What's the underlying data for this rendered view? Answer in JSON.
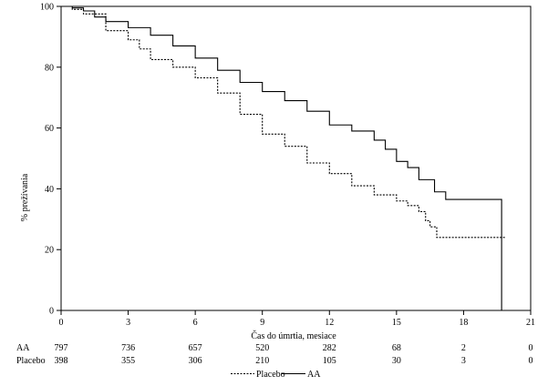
{
  "chart_data": {
    "type": "line",
    "step": true,
    "xlabel": "Čas do úmrtia, mesiace",
    "ylabel": "% prežívania",
    "xlim": [
      0,
      21
    ],
    "ylim": [
      0,
      100
    ],
    "x_ticks": [
      0,
      3,
      6,
      9,
      12,
      15,
      18,
      21
    ],
    "y_ticks": [
      0,
      20,
      40,
      60,
      80,
      100
    ],
    "grid": false,
    "legend_position": "bottom-center",
    "series": [
      {
        "name": "AA",
        "style": "solid",
        "color": "#000000",
        "points": [
          [
            0,
            100
          ],
          [
            0.5,
            99.5
          ],
          [
            1,
            98.5
          ],
          [
            1.5,
            96.5
          ],
          [
            2,
            95
          ],
          [
            3,
            93
          ],
          [
            4,
            90.5
          ],
          [
            5,
            87
          ],
          [
            6,
            83
          ],
          [
            7,
            79
          ],
          [
            8,
            75
          ],
          [
            9,
            72
          ],
          [
            10,
            69
          ],
          [
            11,
            65.5
          ],
          [
            12,
            61
          ],
          [
            13,
            59
          ],
          [
            14,
            56
          ],
          [
            14.5,
            53
          ],
          [
            15,
            49
          ],
          [
            15.5,
            47
          ],
          [
            16,
            43
          ],
          [
            16.5,
            43
          ],
          [
            16.7,
            39
          ],
          [
            17,
            39
          ],
          [
            17.2,
            36.5
          ],
          [
            19.7,
            36.5
          ],
          [
            19.7,
            0
          ]
        ]
      },
      {
        "name": "Placebo",
        "style": "dashed",
        "color": "#000000",
        "points": [
          [
            0,
            100
          ],
          [
            0.5,
            99
          ],
          [
            1,
            97.5
          ],
          [
            2,
            92
          ],
          [
            3,
            89
          ],
          [
            3.5,
            86
          ],
          [
            4,
            82.5
          ],
          [
            5,
            80
          ],
          [
            6,
            76.5
          ],
          [
            7,
            71.5
          ],
          [
            8,
            64.5
          ],
          [
            9,
            58
          ],
          [
            10,
            54
          ],
          [
            11,
            48.5
          ],
          [
            12,
            45
          ],
          [
            13,
            41
          ],
          [
            14,
            38
          ],
          [
            15,
            36
          ],
          [
            15.5,
            34.5
          ],
          [
            16,
            32.5
          ],
          [
            16.3,
            29.5
          ],
          [
            16.5,
            27.5
          ],
          [
            16.7,
            27.5
          ],
          [
            16.8,
            24
          ],
          [
            19.9,
            24
          ]
        ]
      }
    ],
    "risk_table": {
      "rows": [
        {
          "label": "AA",
          "values": [
            "797",
            "736",
            "657",
            "520",
            "282",
            "68",
            "2",
            "0"
          ]
        },
        {
          "label": "Placebo",
          "values": [
            "398",
            "355",
            "306",
            "210",
            "105",
            "30",
            "3",
            "0"
          ]
        }
      ]
    },
    "legend": [
      {
        "label": "Placebo",
        "style": "dashed"
      },
      {
        "label": "AA",
        "style": "solid"
      }
    ]
  }
}
